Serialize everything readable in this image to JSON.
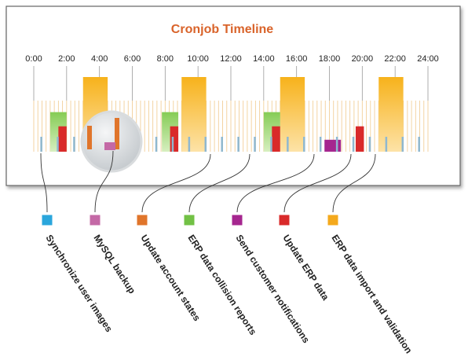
{
  "chart_data": {
    "type": "bar",
    "title": "Cronjob Timeline",
    "x_unit": "hours",
    "xlim": [
      0,
      24
    ],
    "tick_labels": [
      "0:00",
      "2:00",
      "4:00",
      "6:00",
      "8:00",
      "10:00",
      "12:00",
      "14:00",
      "16:00",
      "18:00",
      "20:00",
      "22:00",
      "24:00"
    ],
    "tick_values": [
      0,
      2,
      4,
      6,
      8,
      10,
      12,
      14,
      16,
      18,
      20,
      22,
      24
    ],
    "ylim": [
      0,
      1
    ],
    "legend": [
      {
        "name": "Synchronize user images",
        "color": "#2aa6dc"
      },
      {
        "name": "MySQL backup",
        "color": "#c469a6"
      },
      {
        "name": "Update account states",
        "color": "#e0752b"
      },
      {
        "name": "ERP data collision reports",
        "color": "#72c145"
      },
      {
        "name": "Send customer notifications",
        "color": "#a5268f"
      },
      {
        "name": "Update ERP data",
        "color": "#d92a2a"
      },
      {
        "name": "ERP data import and validation",
        "color": "#f4a91c"
      }
    ],
    "series": [
      {
        "name": "ERP data import and validation",
        "color": "#f4a91c",
        "x": [
          3.0,
          9.0,
          15.0,
          21.0
        ],
        "width": 1.5,
        "values": [
          1.0,
          1.0,
          1.0,
          1.0
        ]
      },
      {
        "name": "ERP data collision reports",
        "color": "#72c145",
        "x": [
          1.0,
          7.8,
          14.0
        ],
        "width": 1.0,
        "values": [
          0.53,
          0.53,
          0.53
        ]
      },
      {
        "name": "Update ERP data",
        "color": "#d92a2a",
        "x": [
          1.5,
          8.3,
          14.5,
          19.6
        ],
        "width": 0.5,
        "values": [
          0.34,
          0.34,
          0.34,
          0.34
        ]
      },
      {
        "name": "Send customer notifications",
        "color": "#a5268f",
        "x": [
          17.7
        ],
        "width": 1.0,
        "values": [
          0.16
        ]
      },
      {
        "name": "Synchronize user images",
        "color": "#2aa6dc",
        "every_hours": 1,
        "width": 0.1,
        "values": [
          0.2
        ]
      },
      {
        "name": "Update account states",
        "color": "#e0752b",
        "every_hours": 0.25,
        "width": 0.06,
        "values": [
          0.69
        ]
      }
    ],
    "zoom_detail": {
      "series": [
        "Update account states",
        "MySQL backup"
      ]
    }
  }
}
